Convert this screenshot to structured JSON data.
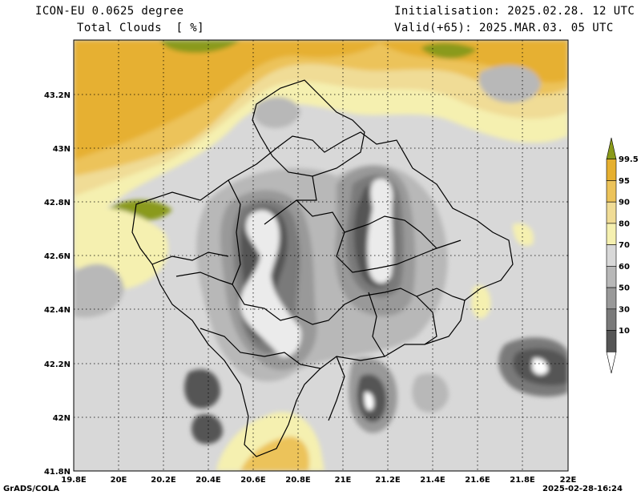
{
  "header": {
    "model": "ICON-EU 0.0625 degree",
    "variable": "Total Clouds  [ %]",
    "initialisation": "Initialisation: 2025.02.28. 12 UTC",
    "valid": "Valid(+65): 2025.MAR.03. 05 UTC"
  },
  "map": {
    "lon_ticks": [
      "19.8E",
      "20E",
      "20.2E",
      "20.4E",
      "20.6E",
      "20.8E",
      "21E",
      "21.2E",
      "21.4E",
      "21.6E",
      "21.8E",
      "22E"
    ],
    "lat_ticks": [
      "43.2N",
      "43N",
      "42.8N",
      "42.6N",
      "42.4N",
      "42.2N",
      "42N",
      "41.8N"
    ],
    "lon_range": [
      19.8,
      22.0
    ],
    "lat_range": [
      41.8,
      43.4
    ]
  },
  "legend": {
    "labels": [
      "99.5",
      "95",
      "90",
      "80",
      "70",
      "60",
      "50",
      "30",
      "10"
    ],
    "colors": [
      "#8a9a1a",
      "#e6b030",
      "#ecc35a",
      "#f0dc96",
      "#f5f0b0",
      "#d8d8d8",
      "#b8b8b8",
      "#999999",
      "#7a7a7a",
      "#555555",
      "#ffffff"
    ]
  },
  "footer": {
    "credit": "GrADS/COLA",
    "timestamp": "2025-02-28-16:24"
  }
}
